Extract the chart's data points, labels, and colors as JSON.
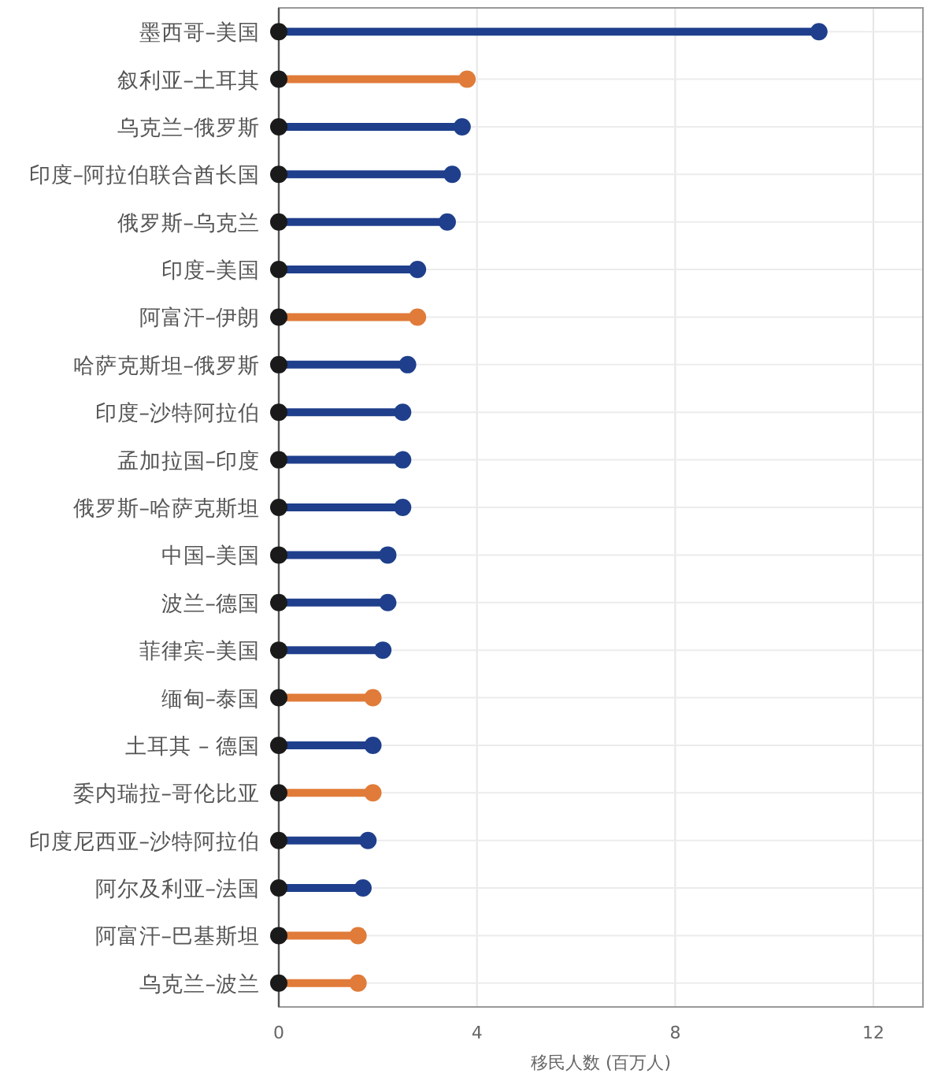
{
  "chart_data": {
    "type": "lollipop",
    "orientation": "horizontal",
    "xlabel": "移民人数 (百万人)",
    "categories": [
      "墨西哥–美国",
      "叙利亚–土耳其",
      "乌克兰–俄罗斯",
      "印度–阿拉伯联合酋长国",
      "俄罗斯–乌克兰",
      "印度–美国",
      "阿富汗–伊朗",
      "哈萨克斯坦–俄罗斯",
      "印度–沙特阿拉伯",
      "孟加拉国–印度",
      "俄罗斯–哈萨克斯坦",
      "中国–美国",
      "波兰–德国",
      "菲律宾–美国",
      "缅甸–泰国",
      "土耳其 – 德国",
      "委内瑞拉–哥伦比亚",
      "印度尼西亚–沙特阿拉伯",
      "阿尔及利亚–法国",
      "阿富汗–巴基斯坦",
      "乌克兰–波兰"
    ],
    "series": [
      {
        "colors": [
          "#1f3f8c",
          "#e07b39",
          "#1f3f8c",
          "#1f3f8c",
          "#1f3f8c",
          "#1f3f8c",
          "#e07b39",
          "#1f3f8c",
          "#1f3f8c",
          "#1f3f8c",
          "#1f3f8c",
          "#1f3f8c",
          "#1f3f8c",
          "#1f3f8c",
          "#e07b39",
          "#1f3f8c",
          "#e07b39",
          "#1f3f8c",
          "#1f3f8c",
          "#e07b39",
          "#e07b39"
        ],
        "values": [
          10.9,
          3.8,
          3.7,
          3.5,
          3.4,
          2.8,
          2.8,
          2.6,
          2.5,
          2.5,
          2.5,
          2.2,
          2.2,
          2.1,
          1.9,
          1.9,
          1.9,
          1.8,
          1.7,
          1.6,
          1.6
        ]
      },
      {
        "type": "scatter",
        "color": "#1a1a1a",
        "values": [
          0,
          0,
          0,
          0,
          0,
          0,
          0,
          0,
          0,
          0,
          0,
          0,
          0,
          0,
          0,
          0,
          0,
          0,
          0,
          0,
          0
        ]
      }
    ],
    "xlim": [
      0,
      13
    ],
    "xticks": [
      0,
      4,
      8,
      12
    ],
    "grid": true,
    "marker": "circle"
  }
}
